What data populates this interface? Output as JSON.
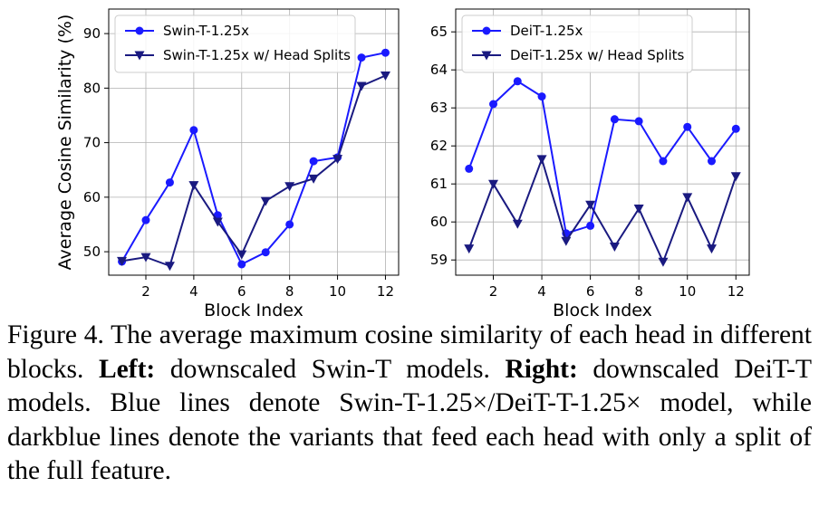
{
  "chart_data": [
    {
      "type": "line",
      "xlabel": "Block Index",
      "ylabel": "Average Cosine Similarity (%)",
      "x": [
        1,
        2,
        3,
        4,
        5,
        6,
        7,
        8,
        9,
        10,
        11,
        12
      ],
      "xticks": [
        2,
        4,
        6,
        8,
        10,
        12
      ],
      "yticks": [
        50,
        60,
        70,
        80,
        90
      ],
      "xlim": [
        0.45,
        12.55
      ],
      "ylim": [
        45.7,
        94.5
      ],
      "grid": true,
      "legend": "top-left",
      "series": [
        {
          "name": "Swin-T-1.25x",
          "marker": "circle",
          "color": "#1a1aff",
          "values": [
            48.2,
            55.8,
            62.7,
            72.3,
            56.7,
            47.7,
            49.9,
            55.0,
            66.6,
            67.3,
            85.6,
            86.5
          ]
        },
        {
          "name": "Swin-T-1.25x w/ Head Splits",
          "marker": "triangle-down",
          "color": "#1a1a80",
          "values": [
            48.3,
            49.0,
            47.4,
            62.2,
            55.5,
            49.5,
            59.3,
            62.0,
            63.4,
            67.0,
            80.4,
            82.3
          ]
        }
      ]
    },
    {
      "type": "line",
      "xlabel": "Block Index",
      "ylabel": "",
      "x": [
        1,
        2,
        3,
        4,
        5,
        6,
        7,
        8,
        9,
        10,
        11,
        12
      ],
      "xticks": [
        2,
        4,
        6,
        8,
        10,
        12
      ],
      "yticks": [
        59,
        60,
        61,
        62,
        63,
        64,
        65
      ],
      "xlim": [
        0.45,
        12.55
      ],
      "ylim": [
        58.6,
        65.6
      ],
      "grid": true,
      "legend": "top-left",
      "series": [
        {
          "name": "DeiT-1.25x",
          "marker": "circle",
          "color": "#1a1aff",
          "values": [
            61.4,
            63.1,
            63.7,
            63.3,
            59.7,
            59.9,
            62.7,
            62.65,
            61.6,
            62.5,
            61.6,
            62.45
          ]
        },
        {
          "name": "DeiT-1.25x w/ Head Splits",
          "marker": "triangle-down",
          "color": "#1a1a80",
          "values": [
            59.3,
            61.0,
            59.95,
            61.65,
            59.5,
            60.45,
            59.35,
            60.35,
            58.95,
            60.65,
            59.3,
            61.2
          ]
        }
      ]
    }
  ],
  "caption": {
    "label": "Figure 4.",
    "text1": " The average maximum cosine similarity of each head in different blocks. ",
    "left_label": "Left:",
    "text2": " downscaled Swin-T models. ",
    "right_label": "Right:",
    "text3": " downscaled DeiT-T models. Blue lines denote Swin-T-1.25×/DeiT-T-1.25× model, while darkblue lines denote the variants that feed each head with only a split of the full feature."
  }
}
